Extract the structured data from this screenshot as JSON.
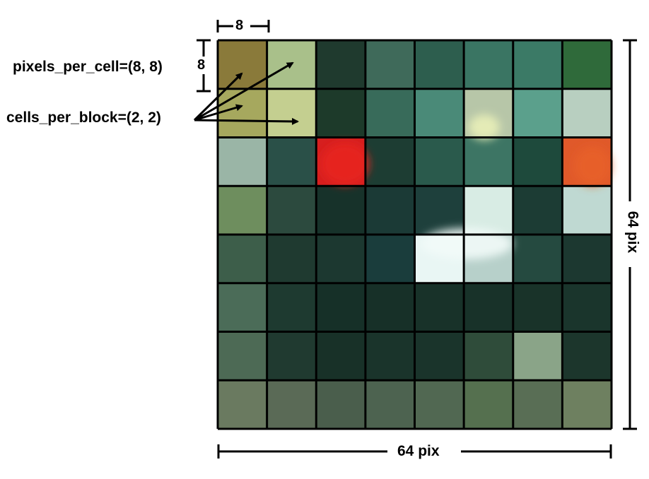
{
  "labels": {
    "pixels_per_cell": "pixels_per_cell=(8, 8)",
    "cells_per_block": "cells_per_block=(2, 2)",
    "cell_width": "8",
    "cell_height": "8",
    "image_width": "64 pix",
    "image_height": "64 pix"
  },
  "grid": {
    "rows": 8,
    "cols": 8
  },
  "colors": {
    "grid_line": "#000000",
    "block_highlight": "#c8b46e",
    "cells": [
      [
        "#8a7a3a",
        "#a9c08a",
        "#1f3a2e",
        "#3f6a5a",
        "#2d5e4e",
        "#3a7563",
        "#3b7a66",
        "#2f6a3a"
      ],
      [
        "#a6a85e",
        "#c4cf90",
        "#1d3a2a",
        "#386b5a",
        "#4a8a78",
        "#b7c6a8",
        "#5ba08c",
        "#b8cfc0"
      ],
      [
        "#9ab5a6",
        "#2a5048",
        "#d61f1f",
        "#1d3d33",
        "#2a5a4c",
        "#3d7564",
        "#1e4a3c",
        "#e0592a"
      ],
      [
        "#6e8e5e",
        "#2c4a3e",
        "#17322a",
        "#1b3a36",
        "#1e403c",
        "#d8ece4",
        "#1c3c34",
        "#bfd9d2"
      ],
      [
        "#3d5e4a",
        "#1f3a30",
        "#1c3830",
        "#1a3d3c",
        "#e9f6f4",
        "#b7d0ca",
        "#254a40",
        "#1c3830"
      ],
      [
        "#4b6c58",
        "#1e3a30",
        "#163028",
        "#173028",
        "#183229",
        "#183229",
        "#193329",
        "#1a352c"
      ],
      [
        "#4d6a55",
        "#203a30",
        "#183128",
        "#1a342b",
        "#1a342b",
        "#2f4c3a",
        "#8aa488",
        "#1c362c"
      ],
      [
        "#6a7a60",
        "#5a6a56",
        "#4a5e4c",
        "#4d6350",
        "#516852",
        "#55704f",
        "#596e55",
        "#6e8060"
      ]
    ]
  }
}
